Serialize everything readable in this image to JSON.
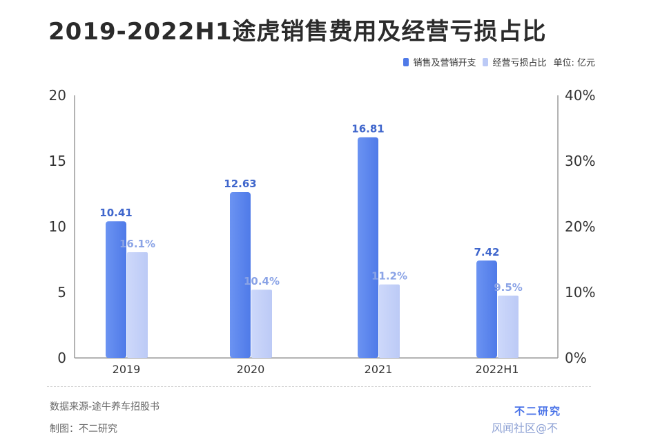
{
  "title": "2019-2022H1途虎销售费用及经营亏损占比",
  "legend": {
    "series1": "销售及营销开支",
    "series2": "经营亏损占比",
    "unit": "单位: 亿元"
  },
  "colors": {
    "series1": "#4f7ae8",
    "series2": "#bccaf6",
    "label1": "#3f66cc",
    "label2": "#8aa3e6"
  },
  "footer": {
    "source": "数据来源-途牛养车招股书",
    "maker": "制图：不二研究",
    "brand": "不二研究",
    "watermark": "风闻社区@不"
  },
  "chart_data": {
    "type": "bar",
    "categories": [
      "2019",
      "2020",
      "2021",
      "2022H1"
    ],
    "series": [
      {
        "name": "销售及营销开支",
        "axis": "left",
        "values": [
          10.41,
          12.63,
          16.81,
          7.42
        ],
        "labels": [
          "10.41",
          "12.63",
          "16.81",
          "7.42"
        ]
      },
      {
        "name": "经营亏损占比",
        "axis": "right",
        "values": [
          16.1,
          10.4,
          11.2,
          9.5
        ],
        "labels": [
          "16.1%",
          "10.4%",
          "11.2%",
          "9.5%"
        ]
      }
    ],
    "y_left": {
      "min": 0,
      "max": 20,
      "ticks": [
        "0",
        "5",
        "10",
        "15",
        "20"
      ]
    },
    "y_right": {
      "min": 0,
      "max": 40,
      "ticks": [
        "0%",
        "10%",
        "20%",
        "30%",
        "40%"
      ]
    },
    "grid": false,
    "legend_position": "top-right"
  }
}
